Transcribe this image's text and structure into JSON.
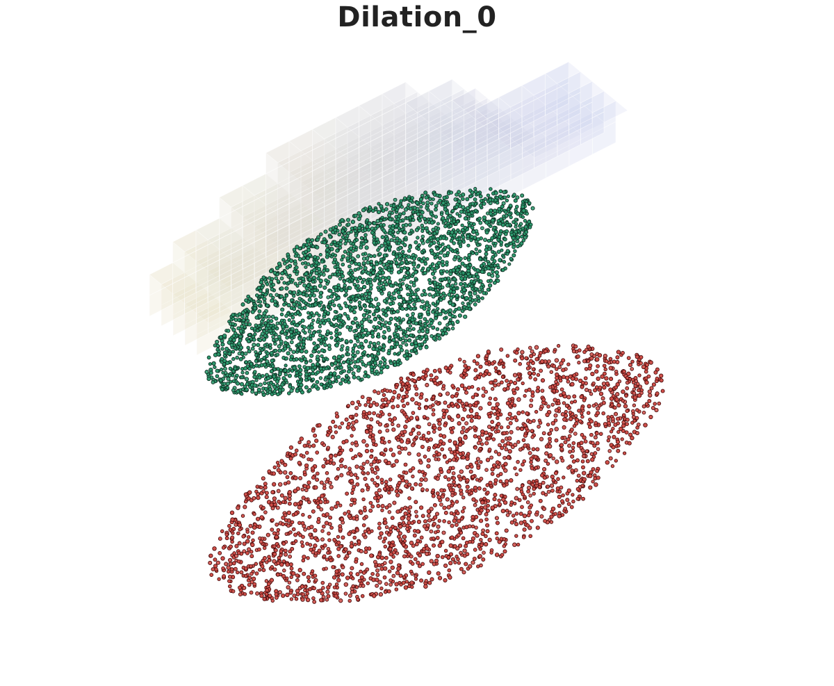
{
  "title": "Dilation_0",
  "colors": {
    "background": "#ffffff",
    "title": "#222222",
    "voxel_warm": "#e8e2c8",
    "voxel_cool": "#c9cfee",
    "green_fill": "#2e9a6e",
    "green_edge": "#0d2e22",
    "red_fill": "#d0504a",
    "red_edge": "#4a0c0c"
  }
}
